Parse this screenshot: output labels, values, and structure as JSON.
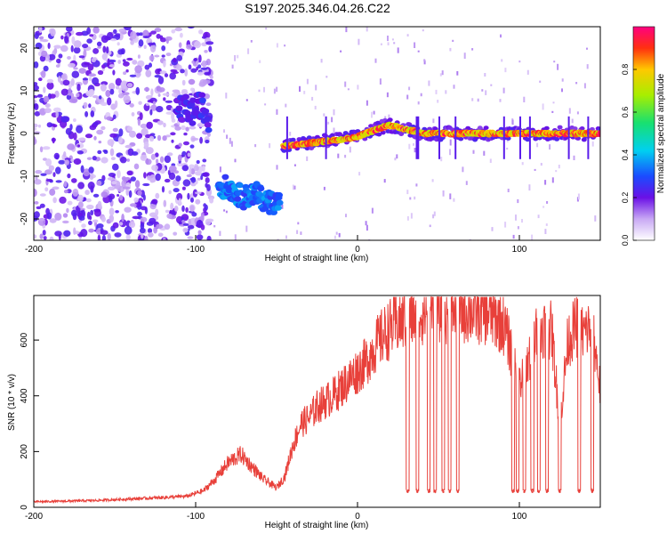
{
  "title": "S197.2025.346.04.26.C22",
  "chart_data": [
    {
      "type": "heatmap",
      "title": "",
      "xlabel": "Height of straight line (km)",
      "ylabel": "Frequency (Hz)",
      "xlim": [
        -200,
        150
      ],
      "ylim": [
        -25,
        25
      ],
      "xticks": [
        -200,
        -100,
        0,
        100
      ],
      "yticks": [
        -20,
        -10,
        0,
        10,
        20
      ],
      "colorbar": {
        "label": "Normalized spectral amplitude",
        "range": [
          0,
          1
        ],
        "ticks": [
          0.0,
          0.2,
          0.4,
          0.6,
          0.8
        ],
        "tick_labels": [
          "0.0",
          "0.2",
          "0.4",
          "0.6",
          "0.8"
        ]
      },
      "features": [
        {
          "segment": "noise",
          "x_range": [
            -200,
            -90
          ],
          "freq_range": [
            -25,
            25
          ],
          "amplitude": 0.15
        },
        {
          "segment": "trace-high",
          "x_range": [
            -112,
            -92
          ],
          "freq": [
            5,
            6,
            5,
            7,
            3
          ],
          "amplitude": 0.25
        },
        {
          "segment": "trace-mid",
          "x_range": [
            -86,
            -48
          ],
          "freq": [
            -12,
            -13,
            -15,
            -14,
            -16,
            -16
          ],
          "amplitude": 0.35
        },
        {
          "segment": "trace-main",
          "x_range": [
            -46,
            150
          ],
          "freq": [
            -3,
            -2,
            -1,
            2,
            0,
            0,
            0,
            0,
            0,
            0
          ],
          "amplitude": 0.9
        }
      ]
    },
    {
      "type": "line",
      "title": "",
      "xlabel": "Height of straight line (km)",
      "ylabel": "SNR (10 * v/v)",
      "xlim": [
        -200,
        150
      ],
      "ylim": [
        0,
        760
      ],
      "xticks": [
        -200,
        -100,
        0,
        100
      ],
      "yticks": [
        0,
        200,
        400,
        600
      ],
      "series": [
        {
          "name": "SNR",
          "color": "#e8403a",
          "x": [
            -200,
            -180,
            -160,
            -140,
            -120,
            -105,
            -95,
            -88,
            -80,
            -72,
            -66,
            -58,
            -50,
            -45,
            -40,
            -35,
            -30,
            -25,
            -20,
            -15,
            -10,
            -5,
            0,
            5,
            10,
            15,
            20,
            25,
            30,
            40,
            50,
            60,
            70,
            80,
            90,
            95,
            100,
            105,
            110,
            115,
            120,
            125,
            130,
            135,
            140,
            145,
            150
          ],
          "y": [
            20,
            22,
            25,
            30,
            35,
            40,
            60,
            100,
            160,
            190,
            150,
            100,
            70,
            110,
            220,
            300,
            320,
            360,
            380,
            400,
            430,
            460,
            490,
            520,
            570,
            610,
            640,
            660,
            680,
            700,
            705,
            710,
            705,
            700,
            660,
            560,
            430,
            520,
            610,
            650,
            630,
            300,
            600,
            650,
            620,
            660,
            420
          ]
        }
      ],
      "dropouts": [
        {
          "x": 31,
          "y": 55
        },
        {
          "x": 37,
          "y": 55
        },
        {
          "x": 44,
          "y": 55
        },
        {
          "x": 48,
          "y": 55
        },
        {
          "x": 53,
          "y": 55
        },
        {
          "x": 57,
          "y": 55
        },
        {
          "x": 62,
          "y": 55
        },
        {
          "x": 96,
          "y": 55
        },
        {
          "x": 99,
          "y": 55
        },
        {
          "x": 103,
          "y": 55
        },
        {
          "x": 108,
          "y": 55
        },
        {
          "x": 112,
          "y": 55
        },
        {
          "x": 117,
          "y": 55
        },
        {
          "x": 125,
          "y": 55
        },
        {
          "x": 137,
          "y": 55
        },
        {
          "x": 145,
          "y": 55
        }
      ]
    }
  ]
}
